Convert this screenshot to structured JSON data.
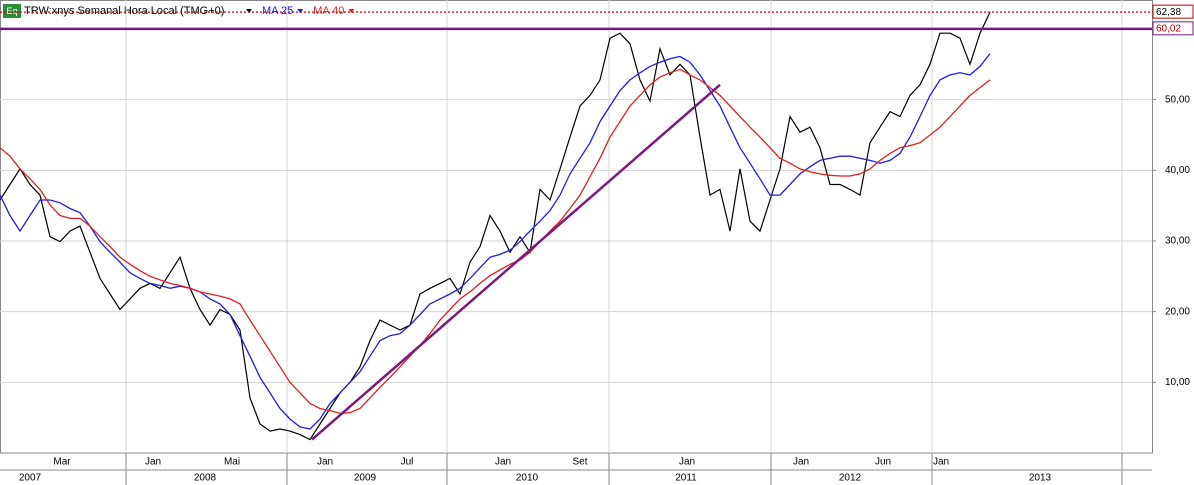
{
  "chart_data": {
    "type": "line",
    "title": "TRW:xnys Semanal Hora Local (TMG+0)",
    "badge": "Eq",
    "xlim": [
      0,
      115.2
    ],
    "ylim": [
      0,
      64.1
    ],
    "yticks": [
      {
        "value": 10,
        "label": "10,00"
      },
      {
        "value": 20,
        "label": "20,00"
      },
      {
        "value": 30,
        "label": "30,00"
      },
      {
        "value": 40,
        "label": "40,00"
      },
      {
        "value": 50,
        "label": "50,00"
      }
    ],
    "grid": true,
    "xgrid": [
      12.6,
      28.7,
      44.7,
      60.9,
      77.1,
      93.2,
      112.2
    ],
    "month_ticks": [
      {
        "value": 6.2,
        "label": "Mar"
      },
      {
        "value": 15.3,
        "label": "Jan"
      },
      {
        "value": 23.2,
        "label": "Mai"
      },
      {
        "value": 32.5,
        "label": "Jan"
      },
      {
        "value": 40.7,
        "label": "Jul"
      },
      {
        "value": 50.3,
        "label": "Jan"
      },
      {
        "value": 58,
        "label": "Set"
      },
      {
        "value": 68.7,
        "label": "Jan"
      },
      {
        "value": 80.1,
        "label": "Jan"
      },
      {
        "value": 88.3,
        "label": "Jun"
      },
      {
        "value": 94.1,
        "label": "Jan"
      }
    ],
    "year_ticks": [
      {
        "value": 3,
        "label": "2007"
      },
      {
        "value": 20.5,
        "label": "2008"
      },
      {
        "value": 36.5,
        "label": "2009"
      },
      {
        "value": 52.7,
        "label": "2010"
      },
      {
        "value": 68.6,
        "label": "2011"
      },
      {
        "value": 85,
        "label": "2012"
      },
      {
        "value": 104,
        "label": "2013"
      }
    ],
    "series": [
      {
        "color": "#000000",
        "width": 1.2,
        "values": [
          35.8,
          38,
          40.2,
          38,
          36.5,
          30.6,
          29.9,
          31.4,
          32.1,
          28.4,
          24.7,
          22.5,
          20.3,
          21.8,
          23.3,
          24,
          23.3,
          25.5,
          27.7,
          23.3,
          20.3,
          18.1,
          20.3,
          19.6,
          17.4,
          7.8,
          4.1,
          3.1,
          3.4,
          3.1,
          2.6,
          1.9,
          4.1,
          6.3,
          8.5,
          10,
          12.2,
          15.9,
          18.8,
          18.1,
          17.4,
          18.1,
          22.5,
          23.3,
          24,
          24.7,
          22.5,
          27,
          29.2,
          33.6,
          31.4,
          28.4,
          30.6,
          28.4,
          37.3,
          35.8,
          40.2,
          44.7,
          49.1,
          50.6,
          52.8,
          58.7,
          59.4,
          57.9,
          52.8,
          49.8,
          57.2,
          53.5,
          55,
          53.5,
          44.7,
          36.5,
          37.3,
          31.4,
          40.2,
          32.8,
          31.4,
          35.8,
          40.2,
          47.6,
          45.4,
          46.1,
          43.2,
          38,
          38,
          37.3,
          36.5,
          43.9,
          46.1,
          48.3,
          47.6,
          50.6,
          52.1,
          55,
          59.4,
          59.4,
          58.7,
          55,
          59.4,
          62.38
        ]
      },
      {
        "name": "MA 25",
        "color": "#1f1fe0",
        "width": 1.3,
        "values": [
          36.5,
          33.6,
          31.4,
          33.6,
          35.8,
          35.8,
          35.4,
          34.6,
          34,
          32.1,
          29.9,
          28.4,
          27,
          25.5,
          24.7,
          24,
          23.7,
          23.3,
          23.6,
          23.3,
          22.8,
          21.8,
          21.1,
          19.6,
          16.6,
          13.7,
          10.7,
          8.5,
          6.3,
          4.8,
          3.7,
          3.4,
          4.8,
          7,
          8.5,
          10,
          11.5,
          13.7,
          15.9,
          16.6,
          16.9,
          18.1,
          19.6,
          21.1,
          21.8,
          22.5,
          23.3,
          24.7,
          26.2,
          27.7,
          28.1,
          28.7,
          29.9,
          31.4,
          32.8,
          34.3,
          36.5,
          39.5,
          41.7,
          43.9,
          46.9,
          49.1,
          51.3,
          52.8,
          53.8,
          54.7,
          55.3,
          55.8,
          56.1,
          55.3,
          53.5,
          51.3,
          49.1,
          46.1,
          43.2,
          41,
          38.8,
          36.5,
          36.5,
          38,
          39.5,
          40.5,
          41.4,
          41.7,
          42,
          42,
          41.7,
          41.4,
          41,
          41.4,
          42.4,
          44.7,
          47.6,
          50.6,
          52.8,
          53.5,
          53.8,
          53.5,
          54.7,
          56.5
        ]
      },
      {
        "name": "MA 40",
        "color": "#e02020",
        "width": 1.3,
        "values": [
          43.2,
          42,
          40.2,
          38.8,
          37.3,
          35.1,
          33.6,
          33.2,
          33.2,
          32.1,
          30.6,
          29.2,
          27.7,
          26.7,
          25.8,
          25,
          24.5,
          24,
          23.7,
          23.3,
          22.8,
          22.5,
          22.2,
          21.8,
          21.1,
          18.8,
          16.6,
          14.4,
          12.2,
          10,
          8.5,
          7,
          6.3,
          6,
          5.6,
          5.7,
          6.3,
          7.8,
          9.3,
          10.7,
          12.2,
          13.7,
          15.2,
          16.9,
          18.8,
          20.3,
          21.8,
          22.8,
          24,
          25.1,
          25.9,
          26.7,
          27.3,
          28.4,
          29.9,
          31.4,
          32.8,
          34.6,
          36.5,
          39.1,
          41.7,
          44.7,
          46.9,
          49.1,
          50.6,
          52.1,
          53.2,
          53.8,
          54.3,
          53.5,
          52.8,
          51.7,
          50.6,
          49.1,
          47.6,
          46.1,
          44.7,
          43.2,
          41.7,
          41,
          40.2,
          39.8,
          39.5,
          39.3,
          39.2,
          39.2,
          39.5,
          40.2,
          41.4,
          42.4,
          43.2,
          43.5,
          43.9,
          45,
          46.1,
          47.6,
          49.1,
          50.6,
          51.7,
          52.8
        ]
      }
    ],
    "trendline": {
      "color": "#7b1a7b",
      "x": [
        31.2,
        72
      ],
      "values": [
        1.9,
        52.1
      ]
    },
    "levels": [
      {
        "value": 62.38,
        "label": "62,38",
        "color": "#c00000",
        "label_color": "#000000",
        "style": "dotted"
      },
      {
        "value": 60.02,
        "label": "60,02",
        "color": "#7b1a7b",
        "label_color": "#c00000",
        "style": "solid"
      }
    ]
  }
}
